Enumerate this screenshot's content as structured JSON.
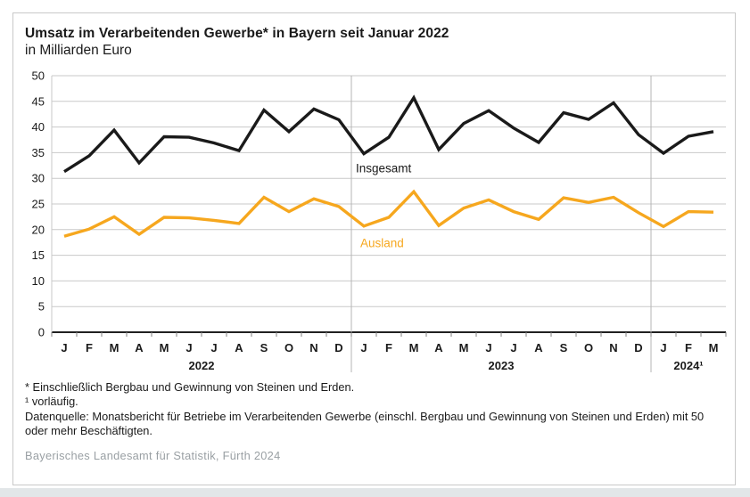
{
  "frame": {
    "title": "Umsatz im Verarbeitenden Gewerbe* in Bayern seit Januar 2022",
    "subtitle": "in Milliarden Euro",
    "footnotes": [
      "* Einschließlich Bergbau und Gewinnung von Steinen und Erden.",
      "¹ vorläufig.",
      "Datenquelle: Monatsbericht für Betriebe im Verarbeitenden Gewerbe (einschl. Bergbau und Gewinnung von Steinen und Erden) mit 50 oder mehr Beschäftigten."
    ],
    "source": "Bayerisches Landesamt für Statistik, Fürth 2024"
  },
  "colors": {
    "series_insgesamt": "#1a1a1a",
    "series_ausland": "#f6a71e",
    "grid": "#c9c9c9",
    "zero_axis": "#000000",
    "divider": "#b5b5b5",
    "tick": "#808080",
    "label": "#1a1a1a",
    "source_gray": "#9aa0a4"
  },
  "chart_data": {
    "type": "line",
    "title": "Umsatz im Verarbeitenden Gewerbe* in Bayern seit Januar 2022",
    "subtitle": "in Milliarden Euro",
    "ylabel": "Milliarden Euro",
    "ylim": [
      0,
      50
    ],
    "ytick_step": 5,
    "grid": true,
    "legend_position": "inline-labels",
    "categories": [
      "J",
      "F",
      "M",
      "A",
      "M",
      "J",
      "J",
      "A",
      "S",
      "O",
      "N",
      "D",
      "J",
      "F",
      "M",
      "A",
      "M",
      "J",
      "J",
      "A",
      "S",
      "O",
      "N",
      "D",
      "J",
      "F",
      "M"
    ],
    "year_groups": [
      {
        "label": "2022",
        "start": 0,
        "end": 11
      },
      {
        "label": "2023",
        "start": 12,
        "end": 23
      },
      {
        "label": "2024¹",
        "start": 24,
        "end": 26
      }
    ],
    "dividers_after": [
      11,
      23
    ],
    "series": [
      {
        "name": "Insgesamt",
        "color": "#1a1a1a",
        "values": [
          31.3,
          34.4,
          39.4,
          33.0,
          38.1,
          38.0,
          36.9,
          35.4,
          43.3,
          39.1,
          43.5,
          41.4,
          34.8,
          38.0,
          45.7,
          35.6,
          40.7,
          43.2,
          39.8,
          37.0,
          42.8,
          41.5,
          44.7,
          38.5,
          34.9,
          38.2,
          39.1
        ],
        "label": {
          "month_index": 12,
          "value": 31.2,
          "dx": -9
        }
      },
      {
        "name": "Ausland",
        "color": "#f6a71e",
        "values": [
          18.7,
          20.1,
          22.5,
          19.1,
          22.4,
          22.3,
          21.8,
          21.2,
          26.3,
          23.5,
          26.0,
          24.5,
          20.7,
          22.4,
          27.4,
          20.8,
          24.2,
          25.8,
          23.5,
          22.0,
          26.2,
          25.3,
          26.3,
          23.3,
          20.6,
          23.5,
          23.4
        ],
        "label": {
          "month_index": 12,
          "value": 16.6,
          "dx": -4
        }
      }
    ]
  }
}
